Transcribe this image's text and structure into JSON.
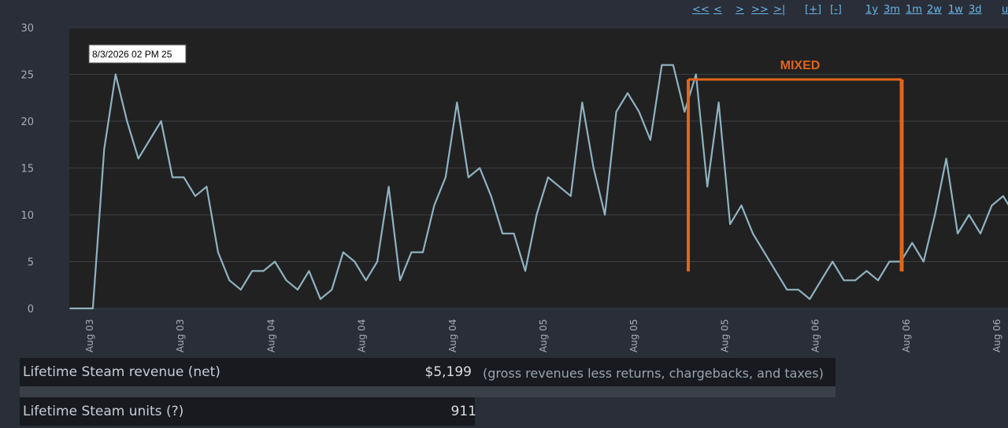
{
  "nav": {
    "first": "<<",
    "prev": "<",
    "next": ">",
    "fast_forward": ">>",
    "last": ">|",
    "zoom_in": "[+]",
    "zoom_out": "[-]",
    "range_1y": "1y",
    "range_3m": "3m",
    "range_1m": "1m",
    "range_2w": "2w",
    "range_1w": "1w",
    "range_3d": "3d",
    "range_cut": "u"
  },
  "chart_data": {
    "type": "line",
    "tooltip": "8/3/2026 02 PM 25",
    "annotation": "MIXED",
    "ylim": [
      0,
      30
    ],
    "yticks": [
      "0",
      "5",
      "10",
      "15",
      "20",
      "25",
      "30"
    ],
    "xticks": [
      "Aug 03",
      "Aug 03",
      "Aug 04",
      "Aug 04",
      "Aug 04",
      "Aug 05",
      "Aug 05",
      "Aug 05",
      "Aug 06",
      "Aug 06",
      "Aug 06"
    ],
    "values": [
      0,
      0,
      0,
      17,
      25,
      20,
      16,
      18,
      20,
      14,
      14,
      12,
      13,
      6,
      3,
      2,
      4,
      4,
      5,
      3,
      2,
      4,
      1,
      2,
      6,
      5,
      3,
      5,
      13,
      3,
      6,
      6,
      11,
      14,
      22,
      14,
      15,
      12,
      8,
      8,
      4,
      10,
      14,
      13,
      12,
      22,
      15,
      10,
      21,
      23,
      21,
      18,
      26,
      26,
      21,
      25,
      13,
      22,
      9,
      11,
      8,
      6,
      4,
      2,
      2,
      1,
      3,
      5,
      3,
      3,
      4,
      3,
      5,
      5,
      7,
      5,
      10,
      16,
      8,
      10,
      8,
      11,
      12,
      10
    ],
    "colors": {
      "line": "#8fb3c0",
      "annotation": "#e0651c",
      "background": "#212121",
      "grid": "#3c3f44"
    }
  },
  "stats": {
    "revenue_label": "Lifetime Steam revenue (net)",
    "revenue_value": "$5,199",
    "revenue_note": "(gross revenues less returns, chargebacks, and taxes)",
    "units_label": "Lifetime Steam units (?)",
    "units_value": "911"
  }
}
